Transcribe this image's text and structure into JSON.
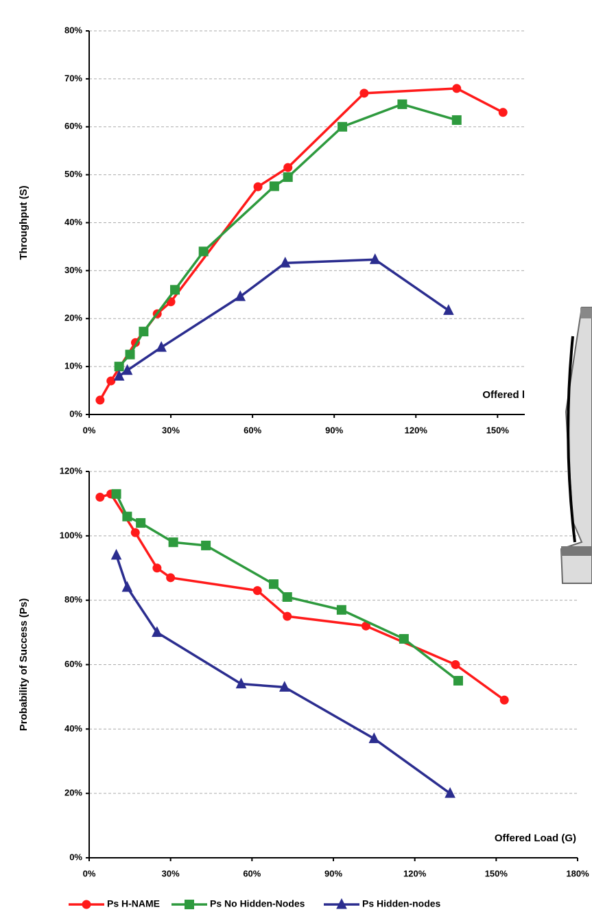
{
  "chart_data": [
    {
      "type": "line",
      "y_label": "Throughput (S)",
      "x_label": "Offered l",
      "xlim": [
        0,
        160
      ],
      "ylim": [
        0,
        80
      ],
      "grid": true,
      "xticks": [
        {
          "value": 0,
          "label": "0%"
        },
        {
          "value": 30,
          "label": "30%"
        },
        {
          "value": 60,
          "label": "60%"
        },
        {
          "value": 90,
          "label": "90%"
        },
        {
          "value": 120,
          "label": "120%"
        },
        {
          "value": 150,
          "label": "150%"
        }
      ],
      "yticks": [
        {
          "value": 0,
          "label": "0%"
        },
        {
          "value": 10,
          "label": "10%"
        },
        {
          "value": 20,
          "label": "20%"
        },
        {
          "value": 30,
          "label": "30%"
        },
        {
          "value": 40,
          "label": "40%"
        },
        {
          "value": 50,
          "label": "50%"
        },
        {
          "value": 60,
          "label": "60%"
        },
        {
          "value": 70,
          "label": "70%"
        },
        {
          "value": 80,
          "label": "80%"
        }
      ],
      "series": [
        {
          "color": "#ff1a1a",
          "marker": "circle",
          "x": [
            4,
            8,
            17,
            25,
            30,
            62,
            73,
            101,
            135,
            152
          ],
          "values": [
            3,
            7,
            15,
            21,
            23.5,
            47.5,
            51.5,
            67,
            68,
            63
          ]
        },
        {
          "color": "#2e9a3e",
          "marker": "square",
          "x": [
            11,
            15,
            20,
            31.5,
            42,
            68,
            73,
            93,
            115,
            135
          ],
          "values": [
            10,
            12.5,
            17.3,
            26,
            34,
            47.6,
            49.5,
            60,
            64.7,
            61.4
          ]
        },
        {
          "color": "#2b2d8f",
          "marker": "triangle",
          "x": [
            11,
            14,
            26.5,
            55.5,
            72,
            105,
            132
          ],
          "values": [
            8,
            9.2,
            14,
            24.6,
            31.6,
            32.3,
            21.7
          ]
        }
      ]
    },
    {
      "type": "line",
      "y_label": "Probability of Success (Ps)",
      "x_label": "Offered Load (G)",
      "xlim": [
        0,
        180
      ],
      "ylim": [
        0,
        120
      ],
      "grid": true,
      "xticks": [
        {
          "value": 0,
          "label": "0%"
        },
        {
          "value": 30,
          "label": "30%"
        },
        {
          "value": 60,
          "label": "60%"
        },
        {
          "value": 90,
          "label": "90%"
        },
        {
          "value": 120,
          "label": "120%"
        },
        {
          "value": 150,
          "label": "150%"
        },
        {
          "value": 180,
          "label": "180%"
        }
      ],
      "yticks": [
        {
          "value": 0,
          "label": "0%"
        },
        {
          "value": 20,
          "label": "20%"
        },
        {
          "value": 40,
          "label": "40%"
        },
        {
          "value": 60,
          "label": "60%"
        },
        {
          "value": 80,
          "label": "80%"
        },
        {
          "value": 100,
          "label": "100%"
        },
        {
          "value": 120,
          "label": "120%"
        }
      ],
      "series": [
        {
          "name": "Ps H-NAME",
          "color": "#ff1a1a",
          "marker": "circle",
          "x": [
            4,
            8,
            17,
            25,
            30,
            62,
            73,
            102,
            135,
            153
          ],
          "values": [
            112,
            113,
            101,
            90,
            87,
            83,
            75,
            72,
            60,
            49
          ]
        },
        {
          "name": "Ps No Hidden-Nodes",
          "color": "#2e9a3e",
          "marker": "square",
          "x": [
            10,
            14,
            19,
            31,
            43,
            68,
            73,
            93,
            116,
            136
          ],
          "values": [
            113,
            106,
            104,
            98,
            97,
            85,
            81,
            77,
            68,
            55
          ]
        },
        {
          "name": "Ps Hidden-nodes",
          "color": "#2b2d8f",
          "marker": "triangle",
          "x": [
            10,
            14,
            25,
            56,
            72,
            105,
            133
          ],
          "values": [
            94,
            84,
            70,
            54,
            53,
            37,
            20
          ]
        }
      ]
    }
  ]
}
